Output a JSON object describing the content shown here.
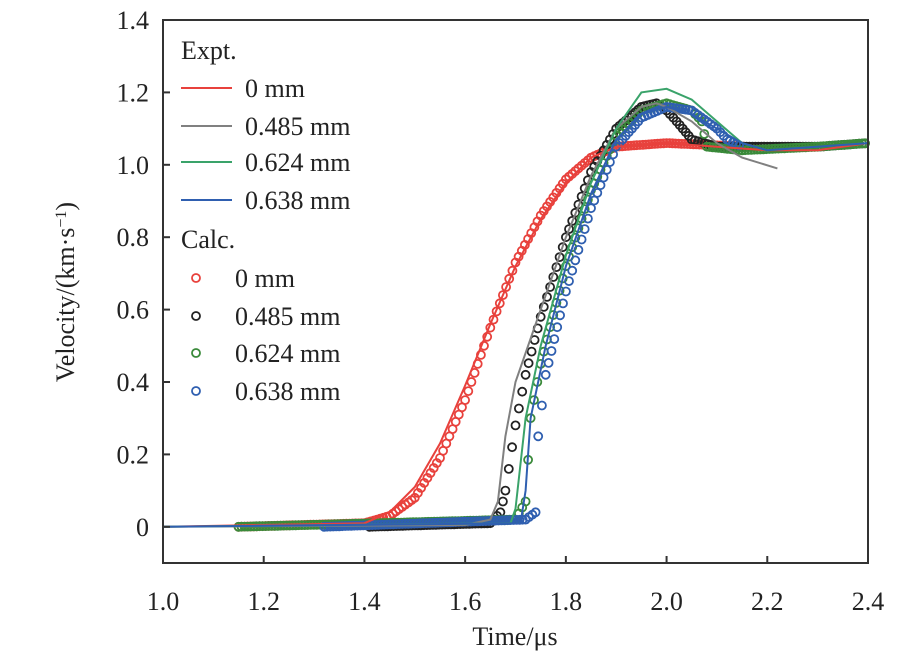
{
  "chart_data": {
    "type": "line",
    "xlabel": "Time/μs",
    "ylabel": "Velocity/(km·s⁻¹)",
    "xlim": [
      1.0,
      2.4
    ],
    "ylim": [
      -0.1,
      1.4
    ],
    "xticks": [
      "1.0",
      "1.2",
      "1.4",
      "1.6",
      "1.8",
      "2.0",
      "2.2",
      "2.4"
    ],
    "yticks": [
      "0",
      "0.2",
      "0.4",
      "0.6",
      "0.8",
      "1.0",
      "1.2",
      "1.4"
    ],
    "grid": false,
    "legend_placement": "top-left",
    "legend_groups": [
      {
        "title": "Expt.",
        "entries": [
          "0 mm",
          "0.485 mm",
          "0.624 mm",
          "0.638 mm"
        ]
      },
      {
        "title": "Calc.",
        "entries": [
          "0 mm",
          "0.485 mm",
          "0.624 mm",
          "0.638 mm"
        ]
      }
    ],
    "series": [
      {
        "name": "0 mm",
        "group": "Expt.",
        "style": "line",
        "color": "#e8413c",
        "x": [
          1.0,
          1.4,
          1.45,
          1.5,
          1.55,
          1.6,
          1.65,
          1.7,
          1.75,
          1.8,
          1.85,
          1.9,
          2.0,
          2.1,
          2.2,
          2.3,
          2.4
        ],
        "y": [
          0,
          0.01,
          0.04,
          0.11,
          0.23,
          0.39,
          0.56,
          0.72,
          0.85,
          0.95,
          1.02,
          1.05,
          1.06,
          1.05,
          1.04,
          1.04,
          1.06
        ]
      },
      {
        "name": "0.485 mm",
        "group": "Expt.",
        "style": "line",
        "color": "#808080",
        "x": [
          1.0,
          1.6,
          1.65,
          1.665,
          1.68,
          1.7,
          1.75,
          1.8,
          1.85,
          1.9,
          1.95,
          1.98,
          2.0,
          2.05,
          2.1,
          2.15,
          2.22
        ],
        "y": [
          0,
          0.005,
          0.02,
          0.07,
          0.25,
          0.4,
          0.6,
          0.8,
          0.97,
          1.1,
          1.16,
          1.17,
          1.16,
          1.12,
          1.06,
          1.02,
          0.99
        ]
      },
      {
        "name": "0.624 mm",
        "group": "Expt.",
        "style": "line",
        "color": "#3aa36a",
        "x": [
          1.0,
          1.69,
          1.7,
          1.72,
          1.75,
          1.8,
          1.85,
          1.9,
          1.95,
          2.0,
          2.05,
          2.1,
          2.15,
          2.2,
          2.3,
          2.4
        ],
        "y": [
          0,
          0.01,
          0.05,
          0.3,
          0.5,
          0.75,
          0.95,
          1.1,
          1.2,
          1.21,
          1.18,
          1.12,
          1.06,
          1.04,
          1.05,
          1.06
        ]
      },
      {
        "name": "0.638 mm",
        "group": "Expt.",
        "style": "line",
        "color": "#2f5fb0",
        "x": [
          1.0,
          1.71,
          1.72,
          1.73,
          1.76,
          1.8,
          1.85,
          1.9,
          1.95,
          2.0,
          2.05,
          2.1,
          2.15,
          2.2,
          2.4
        ],
        "y": [
          0,
          0.01,
          0.1,
          0.3,
          0.5,
          0.72,
          0.92,
          1.07,
          1.14,
          1.16,
          1.14,
          1.1,
          1.06,
          1.04,
          1.06
        ]
      },
      {
        "name": "0 mm",
        "group": "Calc.",
        "style": "circle",
        "color": "#e8413c",
        "x": [
          1.15,
          1.4,
          1.45,
          1.5,
          1.55,
          1.6,
          1.65,
          1.7,
          1.75,
          1.8,
          1.85,
          1.9,
          2.0,
          2.16
        ],
        "y": [
          0,
          0.01,
          0.03,
          0.08,
          0.19,
          0.35,
          0.55,
          0.73,
          0.86,
          0.96,
          1.02,
          1.05,
          1.06,
          1.05
        ]
      },
      {
        "name": "0.485 mm",
        "group": "Calc.",
        "style": "circle",
        "color": "#222222",
        "x": [
          1.41,
          1.65,
          1.67,
          1.68,
          1.7,
          1.72,
          1.75,
          1.8,
          1.85,
          1.9,
          1.95,
          1.98,
          2.0,
          2.02,
          2.05,
          2.1,
          2.2,
          2.3,
          2.4
        ],
        "y": [
          0,
          0.01,
          0.04,
          0.1,
          0.28,
          0.42,
          0.58,
          0.8,
          0.98,
          1.1,
          1.16,
          1.17,
          1.15,
          1.12,
          1.07,
          1.05,
          1.05,
          1.05,
          1.06
        ]
      },
      {
        "name": "0.624 mm",
        "group": "Calc.",
        "style": "circle",
        "color": "#3a8a3a",
        "x": [
          1.15,
          1.7,
          1.72,
          1.73,
          1.75,
          1.8,
          1.85,
          1.9,
          1.95,
          2.0,
          2.05,
          2.07,
          2.08,
          2.15,
          2.3,
          2.4
        ],
        "y": [
          0,
          0.02,
          0.07,
          0.3,
          0.45,
          0.72,
          0.93,
          1.08,
          1.15,
          1.17,
          1.15,
          1.12,
          1.05,
          1.04,
          1.05,
          1.06
        ]
      },
      {
        "name": "0.638 mm",
        "group": "Calc.",
        "style": "circle",
        "color": "#2f5fb0",
        "x": [
          1.32,
          1.72,
          1.74,
          1.745,
          1.76,
          1.8,
          1.85,
          1.9,
          1.95,
          2.0,
          2.05,
          2.1,
          2.12,
          2.15
        ],
        "y": [
          0,
          0.02,
          0.04,
          0.25,
          0.42,
          0.65,
          0.88,
          1.05,
          1.13,
          1.16,
          1.15,
          1.1,
          1.07,
          1.05
        ]
      }
    ]
  }
}
